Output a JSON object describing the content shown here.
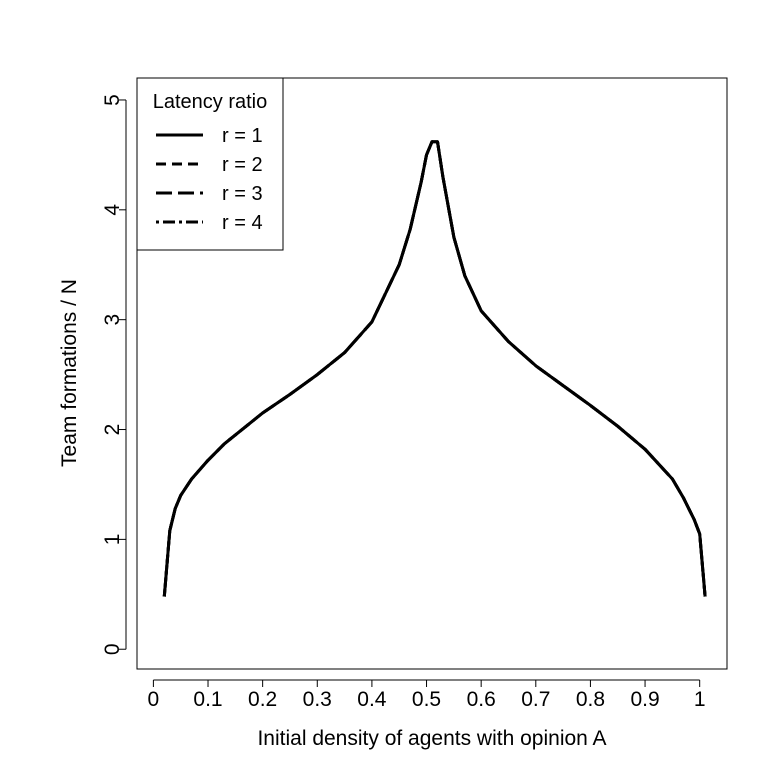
{
  "chart_data": {
    "type": "line",
    "xlabel": "Initial density of agents with opinion A",
    "ylabel": "Team formations / N",
    "xlim": [
      -0.03,
      1.05
    ],
    "ylim": [
      -0.18,
      5.2
    ],
    "xticks": [
      0,
      0.1,
      0.2,
      0.3,
      0.4,
      0.5,
      0.6,
      0.7,
      0.8,
      0.9,
      1
    ],
    "xtick_labels": [
      "0",
      "0.1",
      "0.2",
      "0.3",
      "0.4",
      "0.5",
      "0.6",
      "0.7",
      "0.8",
      "0.9",
      "1"
    ],
    "yticks": [
      0,
      1,
      2,
      3,
      4,
      5
    ],
    "ytick_labels": [
      "0",
      "1",
      "2",
      "3",
      "4",
      "5"
    ],
    "grid": false,
    "legend": {
      "title": "Latency ratio",
      "position": "top-left",
      "entries": [
        "r = 1",
        "r = 2",
        "r = 3",
        "r = 4"
      ]
    },
    "x": [
      0.02,
      0.03,
      0.04,
      0.05,
      0.07,
      0.1,
      0.13,
      0.15,
      0.2,
      0.25,
      0.3,
      0.35,
      0.4,
      0.45,
      0.47,
      0.49,
      0.5,
      0.51,
      0.52,
      0.53,
      0.55,
      0.57,
      0.6,
      0.65,
      0.7,
      0.75,
      0.8,
      0.85,
      0.9,
      0.95,
      0.97,
      0.99,
      1.0,
      1.01
    ],
    "series": [
      {
        "name": "r = 1",
        "style": "solid",
        "y": [
          0.48,
          1.08,
          1.28,
          1.4,
          1.55,
          1.72,
          1.87,
          1.95,
          2.15,
          2.32,
          2.5,
          2.7,
          2.98,
          3.5,
          3.82,
          4.25,
          4.5,
          4.62,
          4.62,
          4.3,
          3.75,
          3.4,
          3.08,
          2.8,
          2.58,
          2.4,
          2.22,
          2.03,
          1.82,
          1.55,
          1.38,
          1.18,
          1.05,
          0.48
        ]
      },
      {
        "name": "r = 2",
        "style": "dashed",
        "y": [
          0.48,
          1.08,
          1.28,
          1.4,
          1.55,
          1.72,
          1.87,
          1.95,
          2.15,
          2.32,
          2.5,
          2.7,
          2.98,
          3.5,
          3.82,
          4.25,
          4.5,
          4.62,
          4.62,
          4.3,
          3.75,
          3.4,
          3.08,
          2.8,
          2.58,
          2.4,
          2.22,
          2.03,
          1.82,
          1.55,
          1.38,
          1.18,
          1.05,
          0.48
        ]
      },
      {
        "name": "r = 3",
        "style": "longdash",
        "y": [
          0.48,
          1.08,
          1.28,
          1.4,
          1.55,
          1.72,
          1.87,
          1.95,
          2.15,
          2.32,
          2.5,
          2.7,
          2.98,
          3.5,
          3.82,
          4.25,
          4.5,
          4.62,
          4.62,
          4.3,
          3.75,
          3.4,
          3.08,
          2.8,
          2.58,
          2.4,
          2.22,
          2.03,
          1.82,
          1.55,
          1.38,
          1.18,
          1.05,
          0.48
        ]
      },
      {
        "name": "r = 4",
        "style": "dotdash",
        "y": [
          0.48,
          1.08,
          1.28,
          1.4,
          1.55,
          1.72,
          1.87,
          1.95,
          2.15,
          2.32,
          2.5,
          2.7,
          2.98,
          3.5,
          3.82,
          4.25,
          4.5,
          4.62,
          4.62,
          4.3,
          3.75,
          3.4,
          3.08,
          2.8,
          2.58,
          2.4,
          2.22,
          2.03,
          1.82,
          1.55,
          1.38,
          1.18,
          1.05,
          0.48
        ]
      }
    ]
  }
}
